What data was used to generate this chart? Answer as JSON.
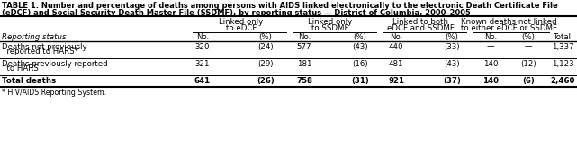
{
  "title_line1": "TABLE 1. Number and percentage of deaths among persons with AIDS linked electronically to the electronic Death Certificate File",
  "title_line2": "(eDCF) and Social Security Death Master File (SSDMF), by reporting status — District of Columbia, 2000–2005",
  "col_groups": [
    {
      "label": "Linked only\nto eDCF"
    },
    {
      "label": "Linked only\nto SSDMF"
    },
    {
      "label": "Linked to both\neDCF and SSDMF"
    },
    {
      "label": "Known deaths not linked\nto either eDCF or SSDMF"
    }
  ],
  "row_header": "Reporting status",
  "total_col": "Total",
  "rows": [
    {
      "label1": "Deaths not previously",
      "label2": "  reported to HARS*",
      "bold": false,
      "data": [
        "320",
        "(24)",
        "577",
        "(43)",
        "440",
        "(33)",
        "—",
        "—"
      ],
      "total": "1,337"
    },
    {
      "label1": "Deaths previously reported",
      "label2": "  to HARS",
      "bold": false,
      "data": [
        "321",
        "(29)",
        "181",
        "(16)",
        "481",
        "(43)",
        "140",
        "(12)"
      ],
      "total": "1,123"
    },
    {
      "label1": "Total deaths",
      "label2": "",
      "bold": true,
      "data": [
        "641",
        "(26)",
        "758",
        "(31)",
        "921",
        "(37)",
        "140",
        "(6)"
      ],
      "total": "2,460"
    }
  ],
  "footnote": "* HIV/AIDS Reporting System.",
  "bg_color": "#ffffff",
  "title_fontsize": 6.0,
  "header_fontsize": 6.2,
  "cell_fontsize": 6.2
}
